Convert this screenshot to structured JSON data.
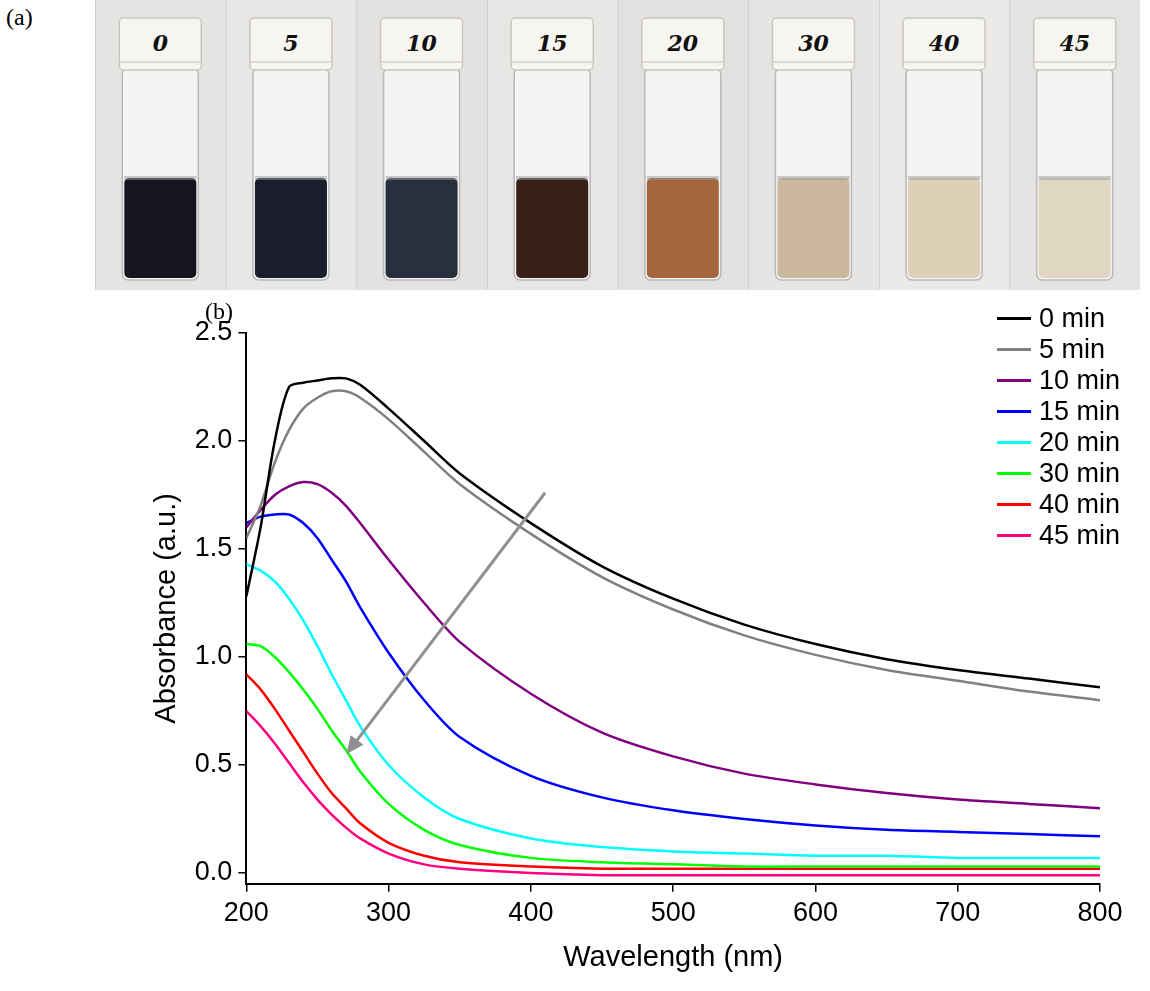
{
  "photo": {
    "panel_label": "(a)",
    "vial_labels": [
      "0",
      "5",
      "10",
      "15",
      "20",
      "30",
      "40",
      "45"
    ]
  },
  "chart_panel_label": "(b)",
  "chart_data": {
    "type": "line",
    "x_label": "Wavelength (nm)",
    "y_label": "Absorbance (a.u.)",
    "x": [
      200,
      210,
      220,
      230,
      240,
      250,
      260,
      270,
      280,
      300,
      325,
      350,
      400,
      450,
      500,
      550,
      600,
      650,
      700,
      750,
      800
    ],
    "series": [
      {
        "name": "0 min",
        "color": "#000000",
        "values": [
          1.28,
          1.6,
          2.0,
          2.25,
          2.27,
          2.28,
          2.29,
          2.29,
          2.26,
          2.15,
          2.0,
          1.85,
          1.62,
          1.42,
          1.27,
          1.15,
          1.06,
          0.99,
          0.94,
          0.9,
          0.86
        ]
      },
      {
        "name": "5 min",
        "color": "#808080",
        "values": [
          1.55,
          1.7,
          1.9,
          2.05,
          2.15,
          2.2,
          2.23,
          2.23,
          2.2,
          2.1,
          1.95,
          1.8,
          1.57,
          1.37,
          1.22,
          1.1,
          1.01,
          0.94,
          0.89,
          0.84,
          0.8
        ]
      },
      {
        "name": "10 min",
        "color": "#800080",
        "values": [
          1.6,
          1.68,
          1.75,
          1.79,
          1.81,
          1.8,
          1.76,
          1.7,
          1.62,
          1.45,
          1.25,
          1.07,
          0.83,
          0.65,
          0.54,
          0.46,
          0.41,
          0.37,
          0.34,
          0.32,
          0.3
        ]
      },
      {
        "name": "15 min",
        "color": "#0000ff",
        "values": [
          1.62,
          1.65,
          1.66,
          1.66,
          1.62,
          1.55,
          1.45,
          1.35,
          1.23,
          1.02,
          0.8,
          0.63,
          0.45,
          0.35,
          0.29,
          0.25,
          0.22,
          0.2,
          0.19,
          0.18,
          0.17
        ]
      },
      {
        "name": "20 min",
        "color": "#00ffff",
        "values": [
          1.43,
          1.4,
          1.35,
          1.27,
          1.17,
          1.05,
          0.92,
          0.8,
          0.68,
          0.5,
          0.35,
          0.25,
          0.16,
          0.12,
          0.1,
          0.09,
          0.08,
          0.08,
          0.07,
          0.07,
          0.07
        ]
      },
      {
        "name": "30 min",
        "color": "#00ff00",
        "values": [
          1.06,
          1.05,
          1.0,
          0.93,
          0.85,
          0.76,
          0.66,
          0.57,
          0.47,
          0.32,
          0.2,
          0.13,
          0.07,
          0.05,
          0.04,
          0.03,
          0.03,
          0.03,
          0.03,
          0.03,
          0.03
        ]
      },
      {
        "name": "40 min",
        "color": "#ff0000",
        "values": [
          0.92,
          0.85,
          0.76,
          0.66,
          0.56,
          0.46,
          0.37,
          0.3,
          0.23,
          0.14,
          0.08,
          0.05,
          0.03,
          0.02,
          0.02,
          0.02,
          0.02,
          0.02,
          0.02,
          0.02,
          0.02
        ]
      },
      {
        "name": "45 min",
        "color": "#ff0080",
        "values": [
          0.75,
          0.68,
          0.6,
          0.51,
          0.42,
          0.34,
          0.27,
          0.21,
          0.16,
          0.09,
          0.04,
          0.02,
          0.0,
          -0.01,
          -0.01,
          -0.01,
          -0.01,
          -0.01,
          -0.01,
          -0.01,
          -0.01
        ]
      }
    ],
    "xlim": [
      200,
      800
    ],
    "xticks": [
      200,
      300,
      400,
      500,
      600,
      700,
      800
    ],
    "ylim": [
      -0.05,
      2.5
    ],
    "yticks": [
      {
        "value": 0,
        "label": "0.0"
      },
      0.5,
      {
        "value": 1,
        "label": "1.0"
      },
      1.5,
      {
        "value": 2,
        "label": "2.0"
      },
      2.5
    ],
    "grid": false,
    "legend": "upper right"
  }
}
